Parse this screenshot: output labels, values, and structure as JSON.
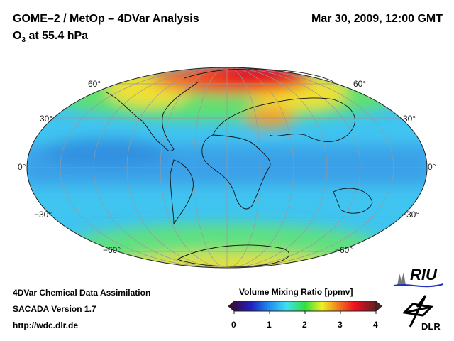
{
  "header": {
    "title": "GOME–2 / MetOp – 4DVar Analysis",
    "date": "Mar 30, 2009, 12:00 GMT",
    "subtitle_prefix": "O",
    "subtitle_sub": "3",
    "subtitle_suffix": " at 55.4 hPa"
  },
  "map": {
    "lat_labels": {
      "n60": "60°",
      "n30": "30°",
      "eq": "0°",
      "s30": "−30°",
      "s60": "−60°"
    }
  },
  "footer": {
    "line1": "4DVar Chemical Data Assimilation",
    "line2": "SACADA Version 1.7",
    "line3": "http://wdc.dlr.de"
  },
  "colorbar": {
    "title": "Volume Mixing Ratio [ppmv]",
    "ticks": [
      "0",
      "1",
      "2",
      "3",
      "4"
    ],
    "range": [
      0,
      4
    ],
    "colors": [
      "#3a0a4a",
      "#2020c0",
      "#2090f0",
      "#40e0f0",
      "#30e040",
      "#f0f020",
      "#f08020",
      "#f01020",
      "#602020"
    ]
  },
  "logos": {
    "riu": "RIU",
    "dlr": "DLR"
  }
}
